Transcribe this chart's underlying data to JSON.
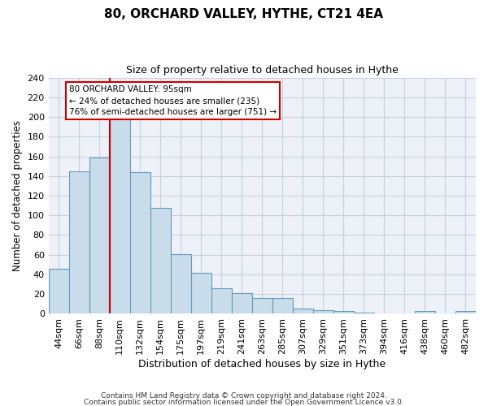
{
  "title": "80, ORCHARD VALLEY, HYTHE, CT21 4EA",
  "subtitle": "Size of property relative to detached houses in Hythe",
  "xlabel": "Distribution of detached houses by size in Hythe",
  "ylabel": "Number of detached properties",
  "bar_labels": [
    "44sqm",
    "66sqm",
    "88sqm",
    "110sqm",
    "132sqm",
    "154sqm",
    "175sqm",
    "197sqm",
    "219sqm",
    "241sqm",
    "263sqm",
    "285sqm",
    "307sqm",
    "329sqm",
    "351sqm",
    "373sqm",
    "394sqm",
    "416sqm",
    "438sqm",
    "460sqm",
    "482sqm"
  ],
  "bar_heights": [
    46,
    145,
    159,
    201,
    144,
    108,
    61,
    42,
    26,
    21,
    16,
    16,
    5,
    4,
    3,
    1,
    0,
    0,
    3,
    0,
    3
  ],
  "bar_color": "#c8dcea",
  "bar_edge_color": "#6699bb",
  "annotation_box_text": "80 ORCHARD VALLEY: 95sqm\n← 24% of detached houses are smaller (235)\n76% of semi-detached houses are larger (751) →",
  "annotation_box_color": "white",
  "annotation_box_edge_color": "#cc0000",
  "vline_color": "#cc0000",
  "vline_x": 2.5,
  "ylim": [
    0,
    240
  ],
  "yticks": [
    0,
    20,
    40,
    60,
    80,
    100,
    120,
    140,
    160,
    180,
    200,
    220,
    240
  ],
  "footer_line1": "Contains HM Land Registry data © Crown copyright and database right 2024.",
  "footer_line2": "Contains public sector information licensed under the Open Government Licence v3.0.",
  "background_color": "#eef2f8",
  "grid_color": "#c8d0dc"
}
